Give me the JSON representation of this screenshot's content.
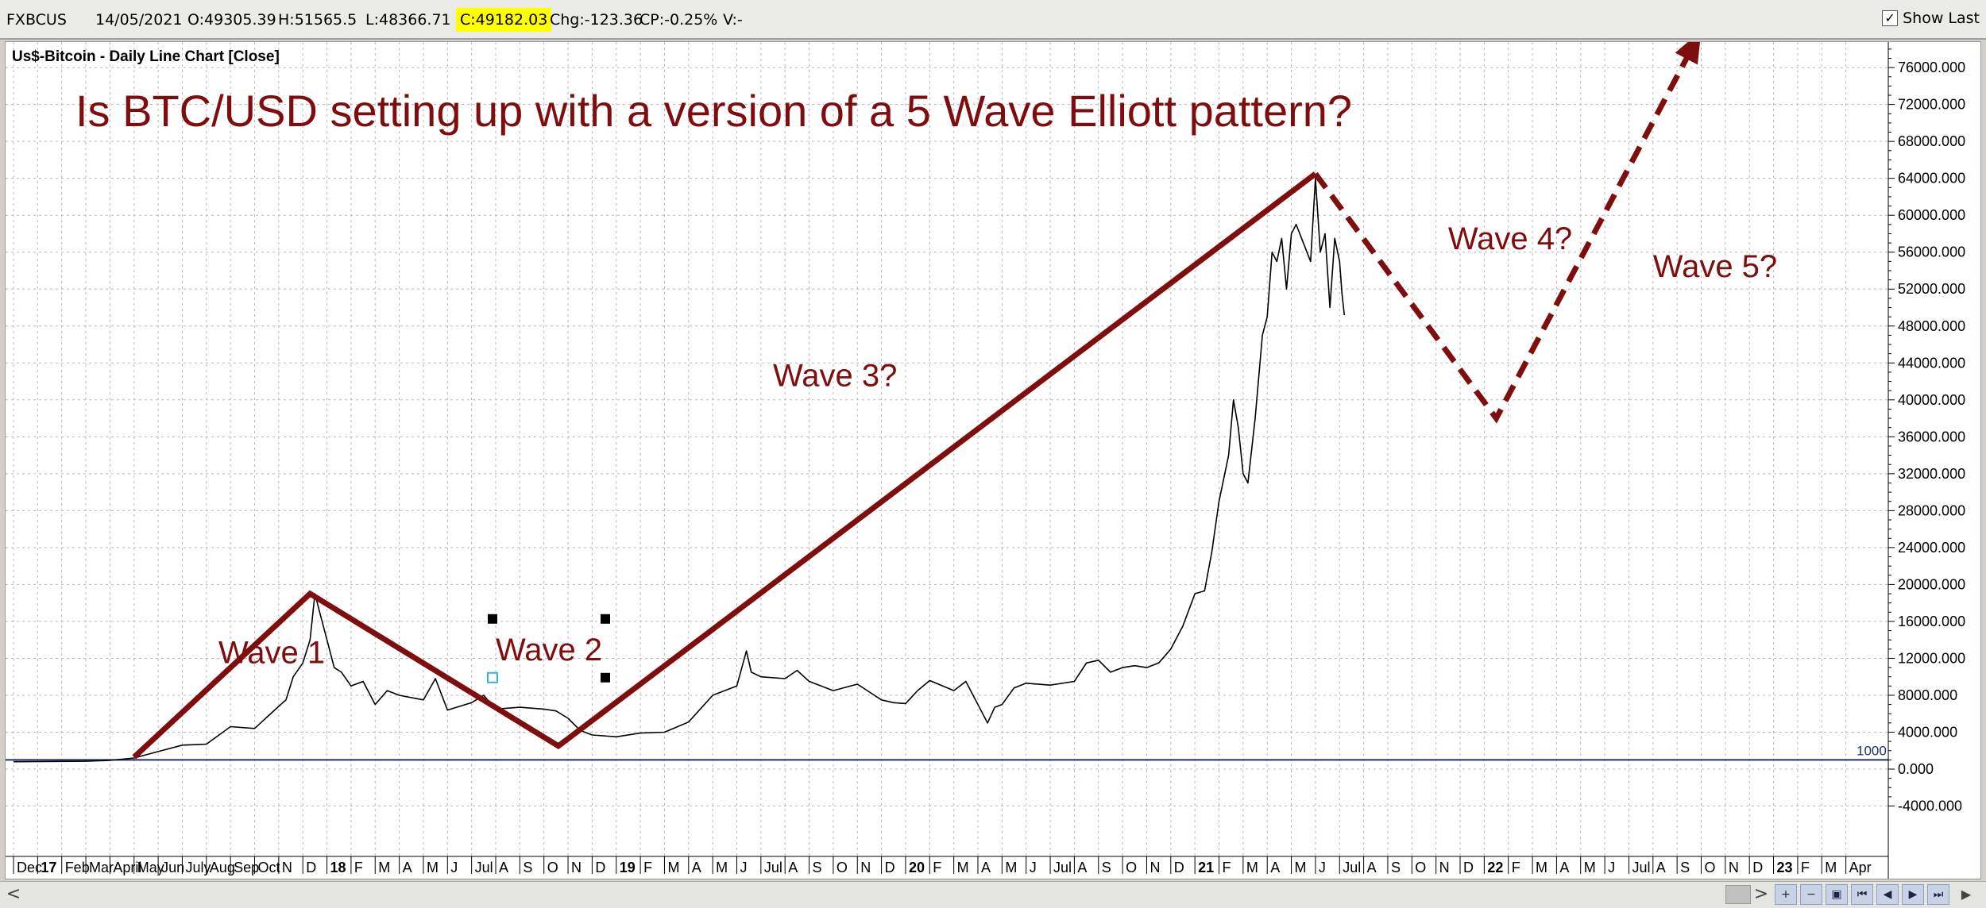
{
  "header": {
    "symbol": "FXBCUS",
    "date": "14/05/2021",
    "open": "O:49305.39",
    "high": "H:51565.5",
    "low": "L:48366.71",
    "close": "C:49182.03",
    "change": "Chg:-123.36",
    "change_pct": "CP:-0.25%",
    "volume": "V:-",
    "show_last_label": "Show Last",
    "show_last_checked": "✓"
  },
  "chart_data": {
    "type": "line",
    "title": "Us$-Bitcoin - Daily Line Chart [Close]",
    "annotation_title": "Is BTC/USD setting up with a version of a 5 Wave Elliott pattern?",
    "ylim": [
      -5500,
      80000
    ],
    "y_ticks": [
      -4000,
      0,
      4000,
      8000,
      12000,
      16000,
      20000,
      24000,
      28000,
      32000,
      36000,
      40000,
      44000,
      48000,
      52000,
      56000,
      60000,
      64000,
      68000,
      72000,
      76000
    ],
    "y_tick_labels": [
      "-4000.000",
      "0.000",
      "4000.000",
      "8000.000",
      "12000.000",
      "16000.000",
      "20000.000",
      "24000.000",
      "28000.000",
      "32000.000",
      "36000.000",
      "40000.000",
      "44000.000",
      "48000.000",
      "52000.000",
      "56000.000",
      "60000.000",
      "64000.000",
      "68000.000",
      "72000.000",
      "76000.000"
    ],
    "reference_line": {
      "value": 1000,
      "label": "1000"
    },
    "x_labels": [
      "Dec",
      "17",
      "Feb",
      "Mar",
      "April",
      "May",
      "Jun",
      "July",
      "Aug",
      "Sep",
      "Oct",
      "N",
      "D",
      "18",
      "F",
      "M",
      "A",
      "M",
      "J",
      "Jul",
      "A",
      "S",
      "O",
      "N",
      "D",
      "19",
      "F",
      "M",
      "A",
      "M",
      "J",
      "Jul",
      "A",
      "S",
      "O",
      "N",
      "D",
      "20",
      "F",
      "M",
      "A",
      "M",
      "J",
      "Jul",
      "A",
      "S",
      "O",
      "N",
      "D",
      "21",
      "F",
      "M",
      "A",
      "M",
      "J",
      "Jul",
      "A",
      "S",
      "O",
      "N",
      "D",
      "22",
      "F",
      "M",
      "A",
      "M",
      "J",
      "Jul",
      "A",
      "S",
      "O",
      "N",
      "D",
      "23",
      "F",
      "M",
      "Apr"
    ],
    "x_labels_bold": [
      "17",
      "18",
      "19",
      "20",
      "21",
      "22",
      "23"
    ],
    "series": [
      {
        "points": [
          [
            0,
            800
          ],
          [
            3,
            850
          ],
          [
            4,
            950
          ],
          [
            5,
            1200
          ],
          [
            6,
            1900
          ],
          [
            7,
            2600
          ],
          [
            8,
            2700
          ],
          [
            9,
            4600
          ],
          [
            10,
            4400
          ],
          [
            11,
            6800
          ],
          [
            11.3,
            7500
          ],
          [
            11.6,
            10000
          ],
          [
            12,
            11500
          ],
          [
            12.3,
            14000
          ],
          [
            12.5,
            19000
          ],
          [
            12.7,
            17000
          ],
          [
            13,
            14000
          ],
          [
            13.3,
            11000
          ],
          [
            13.6,
            10500
          ],
          [
            14,
            9000
          ],
          [
            14.5,
            9500
          ],
          [
            15,
            7000
          ],
          [
            15.5,
            8500
          ],
          [
            16,
            8000
          ],
          [
            17,
            7500
          ],
          [
            17.5,
            9800
          ],
          [
            18,
            6400
          ],
          [
            19,
            7200
          ],
          [
            19.5,
            8000
          ],
          [
            20,
            6500
          ],
          [
            21,
            6700
          ],
          [
            22,
            6500
          ],
          [
            22.5,
            6300
          ],
          [
            23,
            5500
          ],
          [
            23.5,
            4200
          ],
          [
            24,
            3700
          ],
          [
            25,
            3500
          ],
          [
            26,
            3900
          ],
          [
            27,
            4000
          ],
          [
            28,
            5100
          ],
          [
            29,
            8000
          ],
          [
            30,
            9000
          ],
          [
            30.4,
            12800
          ],
          [
            30.6,
            10500
          ],
          [
            31,
            10000
          ],
          [
            32,
            9800
          ],
          [
            32.5,
            10700
          ],
          [
            33,
            9500
          ],
          [
            34,
            8500
          ],
          [
            35,
            9200
          ],
          [
            36,
            7500
          ],
          [
            36.5,
            7200
          ],
          [
            37,
            7100
          ],
          [
            37.5,
            8500
          ],
          [
            38,
            9600
          ],
          [
            39,
            8500
          ],
          [
            39.5,
            9500
          ],
          [
            40,
            7000
          ],
          [
            40.4,
            5000
          ],
          [
            40.7,
            6700
          ],
          [
            41,
            7000
          ],
          [
            41.5,
            8800
          ],
          [
            42,
            9300
          ],
          [
            43,
            9100
          ],
          [
            44,
            9500
          ],
          [
            44.5,
            11500
          ],
          [
            45,
            11800
          ],
          [
            45.5,
            10500
          ],
          [
            46,
            11000
          ],
          [
            46.5,
            11200
          ],
          [
            47,
            11000
          ],
          [
            47.5,
            11500
          ],
          [
            48,
            13000
          ],
          [
            48.5,
            15500
          ],
          [
            49,
            19000
          ],
          [
            49.4,
            19300
          ],
          [
            49.7,
            23500
          ],
          [
            50,
            29000
          ],
          [
            50.4,
            34000
          ],
          [
            50.6,
            40000
          ],
          [
            50.8,
            37000
          ],
          [
            51,
            32000
          ],
          [
            51.2,
            31000
          ],
          [
            51.5,
            38000
          ],
          [
            51.8,
            47000
          ],
          [
            52,
            49000
          ],
          [
            52.2,
            56000
          ],
          [
            52.4,
            55000
          ],
          [
            52.6,
            57500
          ],
          [
            52.8,
            52000
          ],
          [
            53,
            58000
          ],
          [
            53.2,
            59000
          ],
          [
            53.5,
            57000
          ],
          [
            53.8,
            55000
          ],
          [
            54,
            64000
          ],
          [
            54.2,
            56000
          ],
          [
            54.4,
            58000
          ],
          [
            54.6,
            50000
          ],
          [
            54.8,
            57500
          ],
          [
            55,
            55000
          ],
          [
            55.1,
            51500
          ],
          [
            55.2,
            49182
          ]
        ]
      }
    ],
    "wave_lines": {
      "solid": [
        [
          5,
          1300
        ],
        [
          12.3,
          19000
        ],
        [
          22.6,
          2500
        ],
        [
          54,
          64500
        ]
      ],
      "dashed": [
        [
          54,
          64500
        ],
        [
          61.5,
          38000
        ],
        [
          70,
          80000
        ]
      ]
    },
    "wave_labels": [
      {
        "text": "Wave 1",
        "x": 8.5,
        "y": 11500
      },
      {
        "text": "Wave 2",
        "x": 20,
        "y": 11800
      },
      {
        "text": "Wave 3?",
        "x": 31.5,
        "y": 41500
      },
      {
        "text": "Wave 4?",
        "x": 59.5,
        "y": 56300
      },
      {
        "text": "Wave 5?",
        "x": 68,
        "y": 53300
      }
    ],
    "grid": true,
    "colors": {
      "line": "#000000",
      "wave": "#7f0d0d",
      "reference": "#1f2e6e",
      "grid": "#b8b8b8",
      "selection_handle": "#000000",
      "selection_center": "#3ab0d0"
    }
  },
  "icons": {
    "scroll_left": "◀",
    "scroll_right": "▶",
    "zoom_in": "zoom-in-icon",
    "zoom_out": "zoom-out-icon",
    "nav_first": "⏮",
    "nav_prev": "◀",
    "nav_next": "▶",
    "nav_last": "⏭"
  },
  "scroll": {
    "left_arrow": "<",
    "right_arrow": ">"
  }
}
